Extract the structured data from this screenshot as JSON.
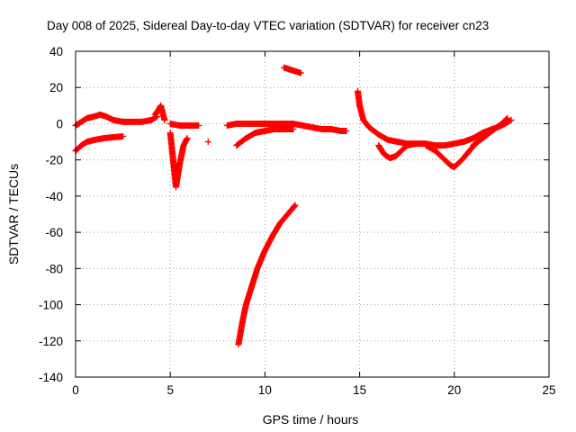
{
  "chart_data": {
    "type": "scatter",
    "title": "Day 008 of 2025, Sidereal Day-to-day VTEC variation (SDTVAR) for receiver cn23",
    "xlabel": "GPS time / hours",
    "ylabel": "SDTVAR / TECUs",
    "xlim": [
      0,
      25
    ],
    "ylim": [
      -140,
      40
    ],
    "xticks": [
      0,
      5,
      10,
      15,
      20,
      25
    ],
    "yticks": [
      -140,
      -120,
      -100,
      -80,
      -60,
      -40,
      -20,
      0,
      20,
      40
    ],
    "grid": true,
    "marker": "plus",
    "color": "#ff0000",
    "series": [
      {
        "name": "track-main-upper",
        "x": [
          0.0,
          0.3,
          0.6,
          1.0,
          1.3,
          1.6,
          2.0,
          2.5,
          3.0,
          3.5,
          4.0,
          4.3
        ],
        "y": [
          -1,
          1,
          3,
          4,
          5,
          4,
          2,
          1,
          1,
          1,
          2,
          4
        ]
      },
      {
        "name": "track-main-lower",
        "x": [
          0.0,
          0.3,
          0.6,
          1.0,
          1.5,
          2.0,
          2.5
        ],
        "y": [
          -15,
          -12,
          -10,
          -9,
          -8,
          -7.5,
          -7
        ]
      },
      {
        "name": "track-spike-4.5h",
        "x": [
          4.2,
          4.4,
          4.5,
          4.6,
          4.7
        ],
        "y": [
          5,
          8,
          10,
          6,
          2
        ]
      },
      {
        "name": "track-drop-5h",
        "x": [
          5.0,
          5.1,
          5.2,
          5.3,
          5.5,
          5.7,
          5.9
        ],
        "y": [
          -5,
          -15,
          -25,
          -35,
          -22,
          -12,
          -8
        ]
      },
      {
        "name": "track-flat-6h",
        "x": [
          5.0,
          5.5,
          6.0,
          6.5
        ],
        "y": [
          0,
          -1,
          -1,
          -1
        ]
      },
      {
        "name": "track-isolated-7h",
        "x": [
          7.0
        ],
        "y": [
          -10
        ]
      },
      {
        "name": "track-mid-flat",
        "x": [
          8.0,
          8.5,
          9.0,
          9.5,
          10.0,
          10.5,
          11.0,
          11.5,
          12.0,
          12.5,
          13.0,
          13.5,
          14.0,
          14.3
        ],
        "y": [
          -1,
          0,
          0,
          0,
          0,
          0,
          0,
          0,
          -1,
          -2,
          -3,
          -3,
          -4,
          -4
        ]
      },
      {
        "name": "track-mid-lower",
        "x": [
          8.5,
          9.0,
          9.5,
          10.0,
          10.5,
          11.0,
          11.5
        ],
        "y": [
          -12,
          -8,
          -5,
          -4,
          -3,
          -3,
          -3
        ]
      },
      {
        "name": "track-dive-8.7h",
        "x": [
          8.6,
          8.8,
          9.0,
          9.3,
          9.6,
          10.0,
          10.4,
          10.8,
          11.2,
          11.6
        ],
        "y": [
          -122,
          -110,
          -100,
          -90,
          -80,
          -70,
          -62,
          -55,
          -50,
          -45
        ]
      },
      {
        "name": "track-high-11.5h",
        "x": [
          11.0,
          11.3,
          11.6,
          11.9
        ],
        "y": [
          31,
          30,
          29,
          28
        ]
      },
      {
        "name": "track-drop-15h",
        "x": [
          14.9,
          15.0,
          15.2,
          15.5,
          16.0,
          16.5,
          17.0,
          17.5,
          18.0,
          18.5,
          19.0,
          19.5,
          20.0,
          20.5,
          21.0,
          21.5,
          22.0,
          22.5,
          23.0
        ],
        "y": [
          18,
          10,
          2,
          -2,
          -6,
          -9,
          -10,
          -11,
          -11,
          -11,
          -12,
          -12,
          -11,
          -10,
          -8,
          -5,
          -3,
          -1,
          2
        ]
      },
      {
        "name": "track-loop-16.5h",
        "x": [
          16.0,
          16.3,
          16.6,
          16.9,
          17.2,
          17.5,
          18.0
        ],
        "y": [
          -12,
          -17,
          -19,
          -18,
          -15,
          -12,
          -11
        ]
      },
      {
        "name": "track-dip-20h",
        "x": [
          18.5,
          19.0,
          19.5,
          19.8,
          20.0,
          20.4,
          20.8,
          21.2
        ],
        "y": [
          -12,
          -15,
          -20,
          -23,
          -24,
          -20,
          -15,
          -10
        ]
      },
      {
        "name": "track-rise-22h",
        "x": [
          21.0,
          21.5,
          22.0,
          22.5,
          22.8
        ],
        "y": [
          -12,
          -8,
          -4,
          0,
          3
        ]
      }
    ]
  }
}
